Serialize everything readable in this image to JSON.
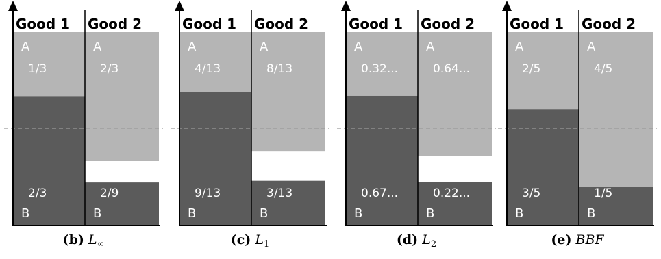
{
  "colors": {
    "agent_a": "#b5b5b5",
    "agent_b": "#5b5b5b",
    "axis": "#000000",
    "divider": "#000000",
    "dashed_line": "#9a9a9a"
  },
  "panels": [
    {
      "label": "(b)",
      "symbol": "L",
      "subscript": "∞",
      "goods": [
        "Good 1",
        "Good 2"
      ],
      "a_values": [
        "1/3",
        "2/3"
      ],
      "b_values": [
        "2/3",
        "2/9"
      ],
      "a_fraction": [
        0.3333,
        0.6667
      ],
      "b_fraction": [
        0.6667,
        0.2222
      ],
      "agent_a": "A",
      "agent_b": "B"
    },
    {
      "label": "(c)",
      "symbol": "L",
      "subscript": "1",
      "goods": [
        "Good 1",
        "Good 2"
      ],
      "a_values": [
        "4/13",
        "8/13"
      ],
      "b_values": [
        "9/13",
        "3/13"
      ],
      "a_fraction": [
        0.3077,
        0.6154
      ],
      "b_fraction": [
        0.6923,
        0.2308
      ],
      "agent_a": "A",
      "agent_b": "B"
    },
    {
      "label": "(d)",
      "symbol": "L",
      "subscript": "2",
      "goods": [
        "Good 1",
        "Good 2"
      ],
      "a_values": [
        "0.32...",
        "0.64..."
      ],
      "b_values": [
        "0.67...",
        "0.22..."
      ],
      "a_fraction": [
        0.3284,
        0.6423
      ],
      "b_fraction": [
        0.6716,
        0.2234
      ],
      "agent_a": "A",
      "agent_b": "B"
    },
    {
      "label": "(e)",
      "symbol": "BBF",
      "subscript": "",
      "goods": [
        "Good 1",
        "Good 2"
      ],
      "a_values": [
        "2/5",
        "4/5"
      ],
      "b_values": [
        "3/5",
        "1/5"
      ],
      "a_fraction": [
        0.4,
        0.8
      ],
      "b_fraction": [
        0.6,
        0.2
      ],
      "agent_a": "A",
      "agent_b": "B"
    }
  ]
}
